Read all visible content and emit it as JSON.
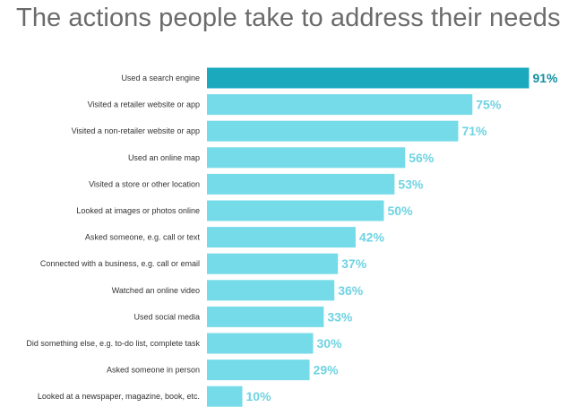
{
  "chart_data": {
    "type": "bar",
    "orientation": "horizontal",
    "title": "The actions people take to address their needs",
    "categories": [
      "Used a search engine",
      "Visited a retailer website or app",
      "Visited a non-retailer website or app",
      "Used an online map",
      "Visited a store or other location",
      "Looked at images or photos online",
      "Asked someone, e.g. call or text",
      "Connected with a business, e.g. call or email",
      "Watched an online video",
      "Used social media",
      "Did something else, e.g. to-do list, complete task",
      "Asked someone in person",
      "Looked at a newspaper, magazine, book, etc."
    ],
    "values": [
      91,
      75,
      71,
      56,
      53,
      50,
      42,
      37,
      36,
      33,
      30,
      29,
      10
    ],
    "value_labels": [
      "91%",
      "75%",
      "71%",
      "56%",
      "53%",
      "50%",
      "42%",
      "37%",
      "36%",
      "33%",
      "30%",
      "29%",
      "10%"
    ],
    "highlight_index": 0,
    "xlim": [
      0,
      100
    ],
    "grid": false,
    "legend": "none",
    "colors": {
      "highlight_bar": "#1aa9bd",
      "bar": "#76dbe9",
      "highlight_label": "#148fa0",
      "label": "#6fd3e2",
      "title": "#6b6b6b",
      "category_text": "#333333"
    }
  }
}
